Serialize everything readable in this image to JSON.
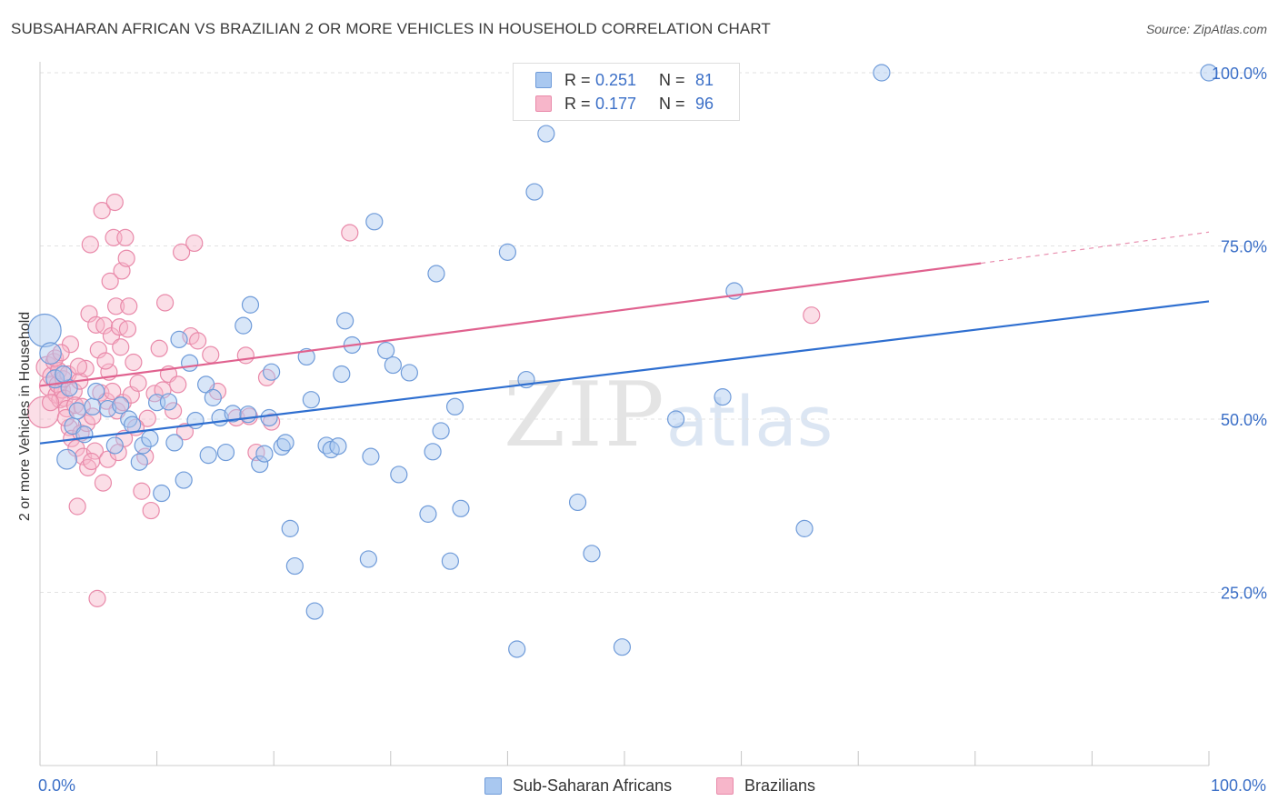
{
  "header": {
    "title": "SUBSAHARAN AFRICAN VS BRAZILIAN 2 OR MORE VEHICLES IN HOUSEHOLD CORRELATION CHART",
    "source": "Source: ZipAtlas.com"
  },
  "watermark": {
    "zip": "ZIP",
    "atlas": "atlas"
  },
  "legend": {
    "rows": [
      {
        "r_label": "R =",
        "r_value": "0.251",
        "n_label": "N =",
        "n_value": "81",
        "color": "#a9c8f0"
      },
      {
        "r_label": "R =",
        "r_value": "0.177",
        "n_label": "N =",
        "n_value": "96",
        "color": "#f7b6ca"
      }
    ]
  },
  "bottom_legend": {
    "items": [
      {
        "label": "Sub-Saharan Africans",
        "color": "#a9c8f0"
      },
      {
        "label": "Brazilians",
        "color": "#f7b6ca"
      }
    ]
  },
  "chart_data": {
    "type": "scatter",
    "title": "SUBSAHARAN AFRICAN VS BRAZILIAN 2 OR MORE VEHICLES IN HOUSEHOLD CORRELATION CHART",
    "xlabel": "",
    "ylabel": "2 or more Vehicles in Household",
    "xlim": [
      0,
      100
    ],
    "ylim": [
      0,
      104
    ],
    "x_tick_labels": [
      "0.0%",
      "100.0%"
    ],
    "y_ticks": [
      25,
      50,
      75,
      100
    ],
    "y_tick_labels": [
      "25.0%",
      "50.0%",
      "75.0%",
      "100.0%"
    ],
    "grid": true,
    "legend_position": "top-center",
    "series": [
      {
        "name": "Sub-Saharan Africans",
        "color": "#a9c8f0",
        "edge": "#6f9bd9",
        "trend": {
          "x": [
            0,
            100
          ],
          "y": [
            46.5,
            67.0
          ],
          "color": "#2f6fd0"
        },
        "points": [
          {
            "x": 0.4,
            "y": 62.8,
            "s": 2.0
          },
          {
            "x": 0.9,
            "y": 59.5,
            "s": 1.3
          },
          {
            "x": 1.3,
            "y": 55.8,
            "s": 1.1
          },
          {
            "x": 2.3,
            "y": 44.2,
            "s": 1.2
          },
          {
            "x": 2.5,
            "y": 54.5,
            "s": 1.0
          },
          {
            "x": 2.8,
            "y": 49.0,
            "s": 1.0
          },
          {
            "x": 3.2,
            "y": 51.2,
            "s": 1.0
          },
          {
            "x": 3.8,
            "y": 47.8,
            "s": 1.0
          },
          {
            "x": 4.5,
            "y": 51.8,
            "s": 1.0
          },
          {
            "x": 4.8,
            "y": 54.0,
            "s": 1.0
          },
          {
            "x": 5.8,
            "y": 51.5,
            "s": 1.0
          },
          {
            "x": 6.4,
            "y": 46.2,
            "s": 1.0
          },
          {
            "x": 6.9,
            "y": 52.0,
            "s": 1.0
          },
          {
            "x": 7.6,
            "y": 50.0,
            "s": 1.0
          },
          {
            "x": 7.9,
            "y": 49.2,
            "s": 1.0
          },
          {
            "x": 8.5,
            "y": 43.8,
            "s": 1.0
          },
          {
            "x": 8.8,
            "y": 46.2,
            "s": 1.0
          },
          {
            "x": 9.4,
            "y": 47.2,
            "s": 1.0
          },
          {
            "x": 10.0,
            "y": 52.4,
            "s": 1.0
          },
          {
            "x": 10.4,
            "y": 39.3,
            "s": 1.0
          },
          {
            "x": 11.0,
            "y": 52.5,
            "s": 1.0
          },
          {
            "x": 11.5,
            "y": 46.6,
            "s": 1.0
          },
          {
            "x": 11.9,
            "y": 61.5,
            "s": 1.0
          },
          {
            "x": 12.3,
            "y": 41.2,
            "s": 1.0
          },
          {
            "x": 12.8,
            "y": 58.1,
            "s": 1.0
          },
          {
            "x": 13.3,
            "y": 49.8,
            "s": 1.0
          },
          {
            "x": 14.2,
            "y": 55.0,
            "s": 1.0
          },
          {
            "x": 14.4,
            "y": 44.8,
            "s": 1.0
          },
          {
            "x": 14.8,
            "y": 53.1,
            "s": 1.0
          },
          {
            "x": 15.4,
            "y": 50.2,
            "s": 1.0
          },
          {
            "x": 15.9,
            "y": 45.2,
            "s": 1.0
          },
          {
            "x": 16.5,
            "y": 50.8,
            "s": 1.0
          },
          {
            "x": 17.4,
            "y": 63.5,
            "s": 1.0
          },
          {
            "x": 17.8,
            "y": 50.7,
            "s": 1.0
          },
          {
            "x": 18.0,
            "y": 66.5,
            "s": 1.0
          },
          {
            "x": 18.8,
            "y": 43.5,
            "s": 1.0
          },
          {
            "x": 19.2,
            "y": 45.0,
            "s": 1.0
          },
          {
            "x": 19.6,
            "y": 50.2,
            "s": 1.0
          },
          {
            "x": 19.8,
            "y": 56.8,
            "s": 1.0
          },
          {
            "x": 20.7,
            "y": 46.0,
            "s": 1.0
          },
          {
            "x": 21.0,
            "y": 46.6,
            "s": 1.0
          },
          {
            "x": 21.4,
            "y": 34.2,
            "s": 1.0
          },
          {
            "x": 21.8,
            "y": 28.8,
            "s": 1.0
          },
          {
            "x": 22.8,
            "y": 59.0,
            "s": 1.0
          },
          {
            "x": 23.2,
            "y": 52.8,
            "s": 1.0
          },
          {
            "x": 23.5,
            "y": 22.3,
            "s": 1.0
          },
          {
            "x": 24.5,
            "y": 46.2,
            "s": 1.0
          },
          {
            "x": 24.9,
            "y": 45.6,
            "s": 1.0
          },
          {
            "x": 25.5,
            "y": 46.1,
            "s": 1.0
          },
          {
            "x": 25.8,
            "y": 56.5,
            "s": 1.0
          },
          {
            "x": 26.1,
            "y": 64.2,
            "s": 1.0
          },
          {
            "x": 26.7,
            "y": 60.7,
            "s": 1.0
          },
          {
            "x": 28.1,
            "y": 29.8,
            "s": 1.0
          },
          {
            "x": 28.3,
            "y": 44.6,
            "s": 1.0
          },
          {
            "x": 28.6,
            "y": 78.5,
            "s": 1.0
          },
          {
            "x": 29.6,
            "y": 59.9,
            "s": 1.0
          },
          {
            "x": 30.2,
            "y": 57.8,
            "s": 1.0
          },
          {
            "x": 30.7,
            "y": 42.0,
            "s": 1.0
          },
          {
            "x": 31.6,
            "y": 56.7,
            "s": 1.0
          },
          {
            "x": 33.2,
            "y": 36.3,
            "s": 1.0
          },
          {
            "x": 33.6,
            "y": 45.3,
            "s": 1.0
          },
          {
            "x": 33.9,
            "y": 71.0,
            "s": 1.0
          },
          {
            "x": 34.3,
            "y": 48.3,
            "s": 1.0
          },
          {
            "x": 35.1,
            "y": 29.5,
            "s": 1.0
          },
          {
            "x": 35.5,
            "y": 51.8,
            "s": 1.0
          },
          {
            "x": 36.0,
            "y": 37.1,
            "s": 1.0
          },
          {
            "x": 40.0,
            "y": 74.1,
            "s": 1.0
          },
          {
            "x": 40.8,
            "y": 16.8,
            "s": 1.0
          },
          {
            "x": 41.6,
            "y": 55.7,
            "s": 1.0
          },
          {
            "x": 42.3,
            "y": 82.8,
            "s": 1.0
          },
          {
            "x": 43.3,
            "y": 91.2,
            "s": 1.0
          },
          {
            "x": 46.0,
            "y": 38.0,
            "s": 1.0
          },
          {
            "x": 47.2,
            "y": 30.6,
            "s": 1.0
          },
          {
            "x": 49.8,
            "y": 17.1,
            "s": 1.0
          },
          {
            "x": 54.4,
            "y": 50.0,
            "s": 1.0
          },
          {
            "x": 58.4,
            "y": 53.2,
            "s": 1.0
          },
          {
            "x": 59.4,
            "y": 68.5,
            "s": 1.0
          },
          {
            "x": 65.4,
            "y": 34.2,
            "s": 1.0
          },
          {
            "x": 72.0,
            "y": 100.0,
            "s": 1.0
          },
          {
            "x": 100.0,
            "y": 100.0,
            "s": 1.0
          },
          {
            "x": 2.0,
            "y": 56.5,
            "s": 1.0
          }
        ]
      },
      {
        "name": "Brazilians",
        "color": "#f7b6ca",
        "edge": "#e98aaa",
        "trend": {
          "x": [
            0,
            80.5
          ],
          "y": [
            54.8,
            72.5
          ],
          "color": "#e0628f",
          "dashed_to": [
            100,
            77.0
          ]
        },
        "points": [
          {
            "x": 0.3,
            "y": 51.0,
            "s": 1.9
          },
          {
            "x": 0.6,
            "y": 57.5,
            "s": 1.3
          },
          {
            "x": 0.8,
            "y": 54.8,
            "s": 1.2
          },
          {
            "x": 1.0,
            "y": 56.2,
            "s": 1.1
          },
          {
            "x": 1.2,
            "y": 58.3,
            "s": 1.0
          },
          {
            "x": 1.4,
            "y": 53.5,
            "s": 1.0
          },
          {
            "x": 1.5,
            "y": 55.0,
            "s": 1.0
          },
          {
            "x": 1.6,
            "y": 57.0,
            "s": 1.0
          },
          {
            "x": 1.7,
            "y": 52.8,
            "s": 1.0
          },
          {
            "x": 1.9,
            "y": 54.2,
            "s": 1.0
          },
          {
            "x": 2.0,
            "y": 55.8,
            "s": 1.0
          },
          {
            "x": 2.1,
            "y": 53.0,
            "s": 1.0
          },
          {
            "x": 2.3,
            "y": 51.5,
            "s": 1.0
          },
          {
            "x": 2.4,
            "y": 56.5,
            "s": 1.0
          },
          {
            "x": 2.5,
            "y": 48.8,
            "s": 1.0
          },
          {
            "x": 2.6,
            "y": 60.8,
            "s": 1.0
          },
          {
            "x": 2.7,
            "y": 47.2,
            "s": 1.0
          },
          {
            "x": 2.9,
            "y": 54.0,
            "s": 1.0
          },
          {
            "x": 3.0,
            "y": 52.0,
            "s": 1.0
          },
          {
            "x": 3.1,
            "y": 45.8,
            "s": 1.0
          },
          {
            "x": 3.2,
            "y": 37.4,
            "s": 1.0
          },
          {
            "x": 3.4,
            "y": 55.5,
            "s": 1.0
          },
          {
            "x": 3.5,
            "y": 48.0,
            "s": 1.0
          },
          {
            "x": 3.6,
            "y": 51.8,
            "s": 1.0
          },
          {
            "x": 3.7,
            "y": 44.6,
            "s": 1.0
          },
          {
            "x": 3.9,
            "y": 57.3,
            "s": 1.0
          },
          {
            "x": 4.0,
            "y": 49.4,
            "s": 1.0
          },
          {
            "x": 4.1,
            "y": 43.0,
            "s": 1.0
          },
          {
            "x": 4.2,
            "y": 65.2,
            "s": 1.0
          },
          {
            "x": 4.3,
            "y": 75.2,
            "s": 1.0
          },
          {
            "x": 4.5,
            "y": 50.4,
            "s": 1.0
          },
          {
            "x": 4.7,
            "y": 45.4,
            "s": 1.0
          },
          {
            "x": 4.8,
            "y": 63.6,
            "s": 1.0
          },
          {
            "x": 4.9,
            "y": 24.1,
            "s": 1.0
          },
          {
            "x": 5.0,
            "y": 60.0,
            "s": 1.0
          },
          {
            "x": 5.2,
            "y": 53.8,
            "s": 1.0
          },
          {
            "x": 5.3,
            "y": 80.1,
            "s": 1.0
          },
          {
            "x": 5.4,
            "y": 40.8,
            "s": 1.0
          },
          {
            "x": 5.5,
            "y": 63.5,
            "s": 1.0
          },
          {
            "x": 5.7,
            "y": 52.6,
            "s": 1.0
          },
          {
            "x": 5.8,
            "y": 44.2,
            "s": 1.0
          },
          {
            "x": 5.9,
            "y": 56.8,
            "s": 1.0
          },
          {
            "x": 6.0,
            "y": 69.9,
            "s": 1.0
          },
          {
            "x": 6.1,
            "y": 62.0,
            "s": 1.0
          },
          {
            "x": 6.2,
            "y": 54.0,
            "s": 1.0
          },
          {
            "x": 6.3,
            "y": 76.2,
            "s": 1.0
          },
          {
            "x": 6.4,
            "y": 81.3,
            "s": 1.0
          },
          {
            "x": 6.5,
            "y": 66.3,
            "s": 1.0
          },
          {
            "x": 6.6,
            "y": 51.2,
            "s": 1.0
          },
          {
            "x": 6.8,
            "y": 63.3,
            "s": 1.0
          },
          {
            "x": 6.9,
            "y": 60.4,
            "s": 1.0
          },
          {
            "x": 7.0,
            "y": 71.4,
            "s": 1.0
          },
          {
            "x": 7.1,
            "y": 52.4,
            "s": 1.0
          },
          {
            "x": 7.2,
            "y": 47.2,
            "s": 1.0
          },
          {
            "x": 7.3,
            "y": 76.2,
            "s": 1.0
          },
          {
            "x": 7.4,
            "y": 73.2,
            "s": 1.0
          },
          {
            "x": 7.5,
            "y": 63.0,
            "s": 1.0
          },
          {
            "x": 7.6,
            "y": 66.3,
            "s": 1.0
          },
          {
            "x": 7.8,
            "y": 53.5,
            "s": 1.0
          },
          {
            "x": 8.0,
            "y": 58.2,
            "s": 1.0
          },
          {
            "x": 8.4,
            "y": 55.2,
            "s": 1.0
          },
          {
            "x": 8.7,
            "y": 39.6,
            "s": 1.0
          },
          {
            "x": 9.0,
            "y": 44.6,
            "s": 1.0
          },
          {
            "x": 9.2,
            "y": 50.1,
            "s": 1.0
          },
          {
            "x": 9.5,
            "y": 36.8,
            "s": 1.0
          },
          {
            "x": 9.8,
            "y": 53.7,
            "s": 1.0
          },
          {
            "x": 10.2,
            "y": 60.2,
            "s": 1.0
          },
          {
            "x": 10.5,
            "y": 54.2,
            "s": 1.0
          },
          {
            "x": 10.7,
            "y": 66.8,
            "s": 1.0
          },
          {
            "x": 11.0,
            "y": 56.5,
            "s": 1.0
          },
          {
            "x": 11.4,
            "y": 51.2,
            "s": 1.0
          },
          {
            "x": 11.8,
            "y": 55.0,
            "s": 1.0
          },
          {
            "x": 12.1,
            "y": 74.1,
            "s": 1.0
          },
          {
            "x": 12.4,
            "y": 48.2,
            "s": 1.0
          },
          {
            "x": 12.9,
            "y": 62.0,
            "s": 1.0
          },
          {
            "x": 13.2,
            "y": 75.4,
            "s": 1.0
          },
          {
            "x": 13.5,
            "y": 61.3,
            "s": 1.0
          },
          {
            "x": 14.6,
            "y": 59.3,
            "s": 1.0
          },
          {
            "x": 15.2,
            "y": 54.0,
            "s": 1.0
          },
          {
            "x": 16.8,
            "y": 50.2,
            "s": 1.0
          },
          {
            "x": 17.6,
            "y": 59.2,
            "s": 1.0
          },
          {
            "x": 17.9,
            "y": 50.4,
            "s": 1.0
          },
          {
            "x": 18.5,
            "y": 45.2,
            "s": 1.0
          },
          {
            "x": 19.4,
            "y": 56.0,
            "s": 1.0
          },
          {
            "x": 19.8,
            "y": 49.6,
            "s": 1.0
          },
          {
            "x": 26.5,
            "y": 76.9,
            "s": 1.0
          },
          {
            "x": 66.0,
            "y": 65.0,
            "s": 1.0
          },
          {
            "x": 1.3,
            "y": 58.8,
            "s": 1.0
          },
          {
            "x": 2.2,
            "y": 50.2,
            "s": 1.0
          },
          {
            "x": 3.3,
            "y": 57.6,
            "s": 1.0
          },
          {
            "x": 4.4,
            "y": 43.9,
            "s": 1.0
          },
          {
            "x": 6.7,
            "y": 45.2,
            "s": 1.0
          },
          {
            "x": 8.2,
            "y": 48.8,
            "s": 1.0
          },
          {
            "x": 0.9,
            "y": 52.4,
            "s": 1.0
          },
          {
            "x": 1.8,
            "y": 59.6,
            "s": 1.0
          },
          {
            "x": 5.6,
            "y": 58.4,
            "s": 1.0
          }
        ]
      }
    ]
  }
}
